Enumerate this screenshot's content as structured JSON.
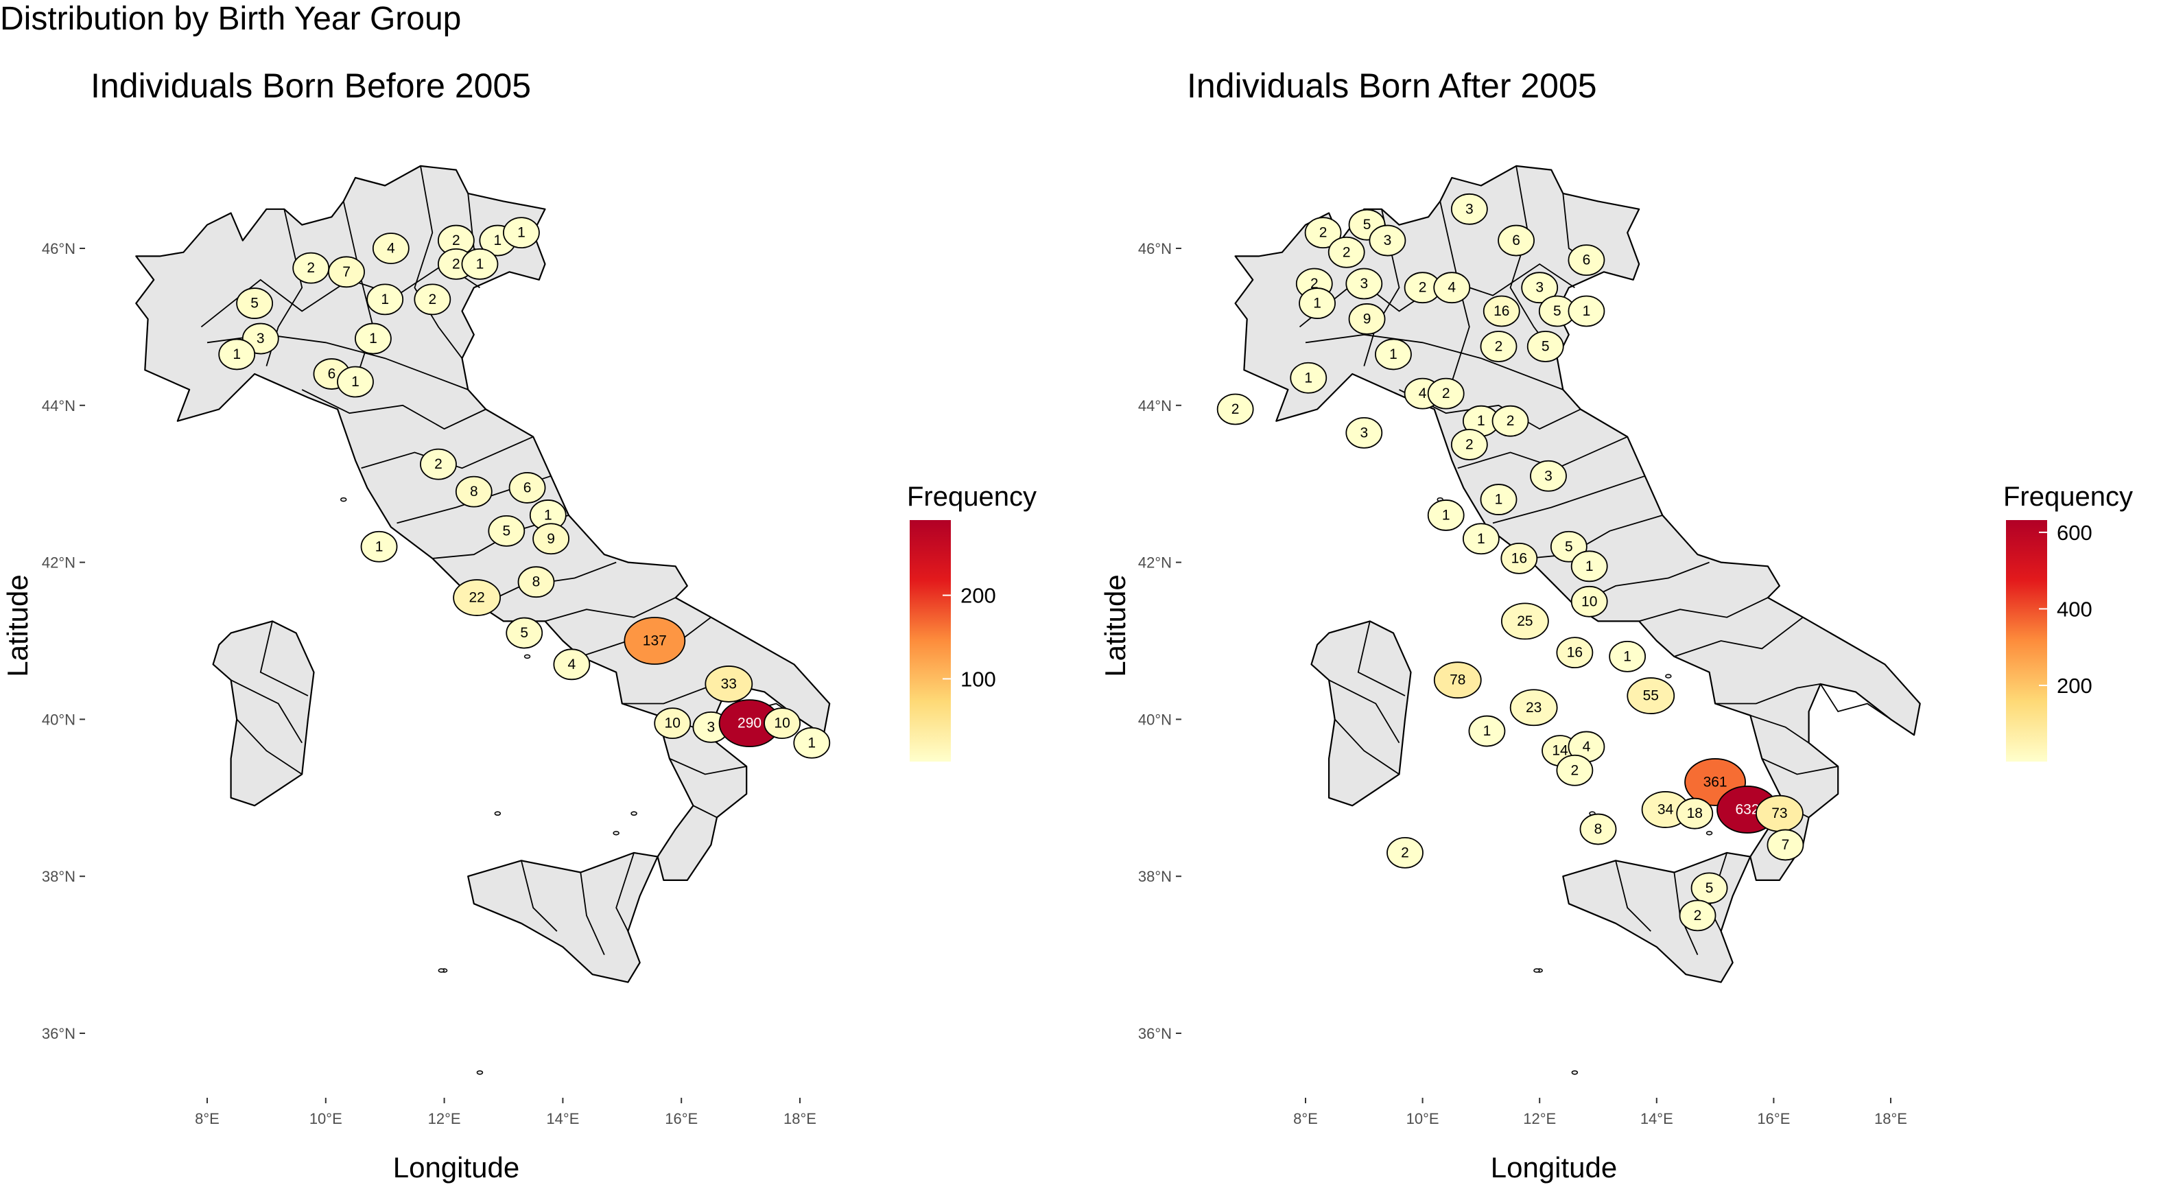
{
  "figure": {
    "title": "Distribution by Birth Year Group"
  },
  "maps": [
    {
      "id": "before",
      "title": "Individuals Born Before 2005",
      "xlabel": "Longitude",
      "ylabel": "Latitude",
      "legend": {
        "title": "Frequency",
        "ticks": [
          100,
          200
        ],
        "min": 1,
        "max": 290
      },
      "regions": [
        {
          "count": 2,
          "lon": 9.75,
          "lat": 45.75
        },
        {
          "count": 7,
          "lon": 10.35,
          "lat": 45.7
        },
        {
          "count": 4,
          "lon": 11.1,
          "lat": 46.0
        },
        {
          "count": 2,
          "lon": 12.2,
          "lat": 46.1
        },
        {
          "count": 1,
          "lon": 12.9,
          "lat": 46.1
        },
        {
          "count": 1,
          "lon": 13.3,
          "lat": 46.2
        },
        {
          "count": 2,
          "lon": 12.2,
          "lat": 45.8
        },
        {
          "count": 1,
          "lon": 12.6,
          "lat": 45.8
        },
        {
          "count": 1,
          "lon": 11.0,
          "lat": 45.35
        },
        {
          "count": 2,
          "lon": 11.8,
          "lat": 45.35
        },
        {
          "count": 5,
          "lon": 8.8,
          "lat": 45.3
        },
        {
          "count": 3,
          "lon": 8.9,
          "lat": 44.85
        },
        {
          "count": 1,
          "lon": 8.5,
          "lat": 44.65
        },
        {
          "count": 1,
          "lon": 10.8,
          "lat": 44.85
        },
        {
          "count": 6,
          "lon": 10.1,
          "lat": 44.4
        },
        {
          "count": 1,
          "lon": 10.5,
          "lat": 44.3
        },
        {
          "count": 2,
          "lon": 11.9,
          "lat": 43.25
        },
        {
          "count": 8,
          "lon": 12.5,
          "lat": 42.9
        },
        {
          "count": 6,
          "lon": 13.4,
          "lat": 42.95
        },
        {
          "count": 1,
          "lon": 13.75,
          "lat": 42.6
        },
        {
          "count": 9,
          "lon": 13.8,
          "lat": 42.3
        },
        {
          "count": 5,
          "lon": 13.05,
          "lat": 42.4
        },
        {
          "count": 1,
          "lon": 10.9,
          "lat": 42.2
        },
        {
          "count": 8,
          "lon": 13.55,
          "lat": 41.75
        },
        {
          "count": 22,
          "lon": 12.55,
          "lat": 41.55
        },
        {
          "count": 5,
          "lon": 13.35,
          "lat": 41.1
        },
        {
          "count": 4,
          "lon": 14.15,
          "lat": 40.7
        },
        {
          "count": 137,
          "lon": 15.55,
          "lat": 41.0
        },
        {
          "count": 33,
          "lon": 16.8,
          "lat": 40.45
        },
        {
          "count": 10,
          "lon": 15.85,
          "lat": 39.95
        },
        {
          "count": 3,
          "lon": 16.5,
          "lat": 39.9
        },
        {
          "count": 290,
          "lon": 17.15,
          "lat": 39.95
        },
        {
          "count": 10,
          "lon": 17.7,
          "lat": 39.95
        },
        {
          "count": 1,
          "lon": 18.2,
          "lat": 39.7
        }
      ]
    },
    {
      "id": "after",
      "title": "Individuals Born After 2005",
      "xlabel": "Longitude",
      "ylabel": "Latitude",
      "legend": {
        "title": "Frequency",
        "ticks": [
          200,
          400,
          600
        ],
        "min": 1,
        "max": 632
      },
      "regions": [
        {
          "count": 2,
          "lon": 8.3,
          "lat": 46.2
        },
        {
          "count": 5,
          "lon": 9.05,
          "lat": 46.3
        },
        {
          "count": 2,
          "lon": 8.7,
          "lat": 45.95
        },
        {
          "count": 3,
          "lon": 9.4,
          "lat": 46.1
        },
        {
          "count": 2,
          "lon": 8.15,
          "lat": 45.55
        },
        {
          "count": 3,
          "lon": 9.0,
          "lat": 45.55
        },
        {
          "count": 9,
          "lon": 9.05,
          "lat": 45.1
        },
        {
          "count": 1,
          "lon": 8.2,
          "lat": 45.3
        },
        {
          "count": 2,
          "lon": 10.0,
          "lat": 45.5
        },
        {
          "count": 4,
          "lon": 10.5,
          "lat": 45.5
        },
        {
          "count": 3,
          "lon": 10.8,
          "lat": 46.5
        },
        {
          "count": 6,
          "lon": 11.6,
          "lat": 46.1
        },
        {
          "count": 16,
          "lon": 11.35,
          "lat": 45.2
        },
        {
          "count": 3,
          "lon": 12.0,
          "lat": 45.5
        },
        {
          "count": 6,
          "lon": 12.8,
          "lat": 45.85
        },
        {
          "count": 5,
          "lon": 12.3,
          "lat": 45.2
        },
        {
          "count": 1,
          "lon": 12.8,
          "lat": 45.2
        },
        {
          "count": 2,
          "lon": 11.3,
          "lat": 44.75
        },
        {
          "count": 5,
          "lon": 12.1,
          "lat": 44.75
        },
        {
          "count": 1,
          "lon": 9.5,
          "lat": 44.65
        },
        {
          "count": 1,
          "lon": 8.05,
          "lat": 44.35
        },
        {
          "count": 2,
          "lon": 6.8,
          "lat": 43.95
        },
        {
          "count": 3,
          "lon": 9.0,
          "lat": 43.65
        },
        {
          "count": 4,
          "lon": 10.0,
          "lat": 44.15
        },
        {
          "count": 2,
          "lon": 10.4,
          "lat": 44.15
        },
        {
          "count": 1,
          "lon": 11.0,
          "lat": 43.8
        },
        {
          "count": 2,
          "lon": 11.5,
          "lat": 43.8
        },
        {
          "count": 2,
          "lon": 10.8,
          "lat": 43.5
        },
        {
          "count": 3,
          "lon": 12.15,
          "lat": 43.1
        },
        {
          "count": 1,
          "lon": 10.4,
          "lat": 42.6
        },
        {
          "count": 1,
          "lon": 11.3,
          "lat": 42.8
        },
        {
          "count": 1,
          "lon": 11.0,
          "lat": 42.3
        },
        {
          "count": 16,
          "lon": 11.65,
          "lat": 42.05
        },
        {
          "count": 5,
          "lon": 12.5,
          "lat": 42.2
        },
        {
          "count": 1,
          "lon": 12.85,
          "lat": 41.95
        },
        {
          "count": 10,
          "lon": 12.85,
          "lat": 41.5
        },
        {
          "count": 25,
          "lon": 11.75,
          "lat": 41.25
        },
        {
          "count": 16,
          "lon": 12.6,
          "lat": 40.85
        },
        {
          "count": 1,
          "lon": 13.5,
          "lat": 40.8
        },
        {
          "count": 78,
          "lon": 10.6,
          "lat": 40.5
        },
        {
          "count": 23,
          "lon": 11.9,
          "lat": 40.15
        },
        {
          "count": 1,
          "lon": 11.1,
          "lat": 39.85
        },
        {
          "count": 14,
          "lon": 12.35,
          "lat": 39.6
        },
        {
          "count": 4,
          "lon": 12.8,
          "lat": 39.65
        },
        {
          "count": 2,
          "lon": 12.6,
          "lat": 39.35
        },
        {
          "count": 55,
          "lon": 13.9,
          "lat": 40.3
        },
        {
          "count": 361,
          "lon": 15.0,
          "lat": 39.2
        },
        {
          "count": 632,
          "lon": 15.55,
          "lat": 38.85
        },
        {
          "count": 73,
          "lon": 16.1,
          "lat": 38.8
        },
        {
          "count": 34,
          "lon": 14.15,
          "lat": 38.85
        },
        {
          "count": 18,
          "lon": 14.65,
          "lat": 38.8
        },
        {
          "count": 8,
          "lon": 13.0,
          "lat": 38.6
        },
        {
          "count": 7,
          "lon": 16.2,
          "lat": 38.4
        },
        {
          "count": 5,
          "lon": 14.9,
          "lat": 37.85
        },
        {
          "count": 2,
          "lon": 14.7,
          "lat": 37.5
        },
        {
          "count": 2,
          "lon": 9.7,
          "lat": 38.3
        }
      ]
    }
  ]
}
